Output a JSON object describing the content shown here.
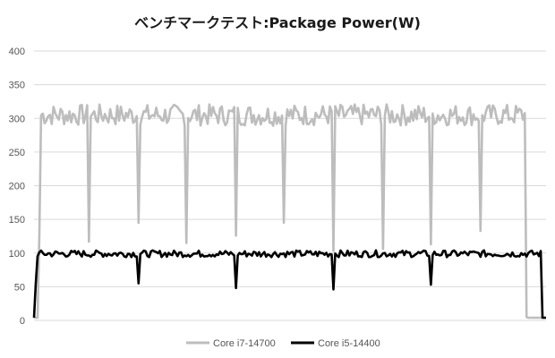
{
  "chart_data": {
    "type": "line",
    "title": "ベンチマークテスト:Package Power(W)",
    "xlabel": "",
    "ylabel": "",
    "ylim": [
      0,
      400
    ],
    "yticks": [
      "0",
      "50",
      "100",
      "150",
      "200",
      "250",
      "300",
      "350",
      "400"
    ],
    "grid": true,
    "legend": "bottom",
    "sample_count": 290,
    "series": [
      {
        "name": "Core i7-14700",
        "color": "#bdbdbd",
        "segments": [
          {
            "from": 0,
            "to": 2,
            "value": 4
          },
          {
            "from": 3,
            "to": 3,
            "value": 125
          },
          {
            "from": 4,
            "to": 277,
            "value": 305,
            "jitter": 16,
            "dips": [
              {
                "at": 31,
                "value": 117
              },
              {
                "at": 59,
                "value": 145
              },
              {
                "at": 86,
                "value": 115
              },
              {
                "at": 114,
                "value": 126
              },
              {
                "at": 141,
                "value": 145
              },
              {
                "at": 169,
                "value": 103
              },
              {
                "at": 197,
                "value": 106
              },
              {
                "at": 224,
                "value": 113
              },
              {
                "at": 252,
                "value": 133
              }
            ]
          },
          {
            "from": 278,
            "to": 278,
            "value": 5
          },
          {
            "from": 279,
            "to": 289,
            "value": 4
          }
        ]
      },
      {
        "name": "Core i5-14400",
        "color": "#000000",
        "segments": [
          {
            "from": 0,
            "to": 0,
            "value": 4
          },
          {
            "from": 1,
            "to": 1,
            "value": 55
          },
          {
            "from": 2,
            "to": 286,
            "value": 99,
            "jitter": 5,
            "dips": [
              {
                "at": 59,
                "value": 55
              },
              {
                "at": 114,
                "value": 48
              },
              {
                "at": 169,
                "value": 46
              },
              {
                "at": 224,
                "value": 53
              }
            ]
          },
          {
            "from": 287,
            "to": 289,
            "value": 4
          }
        ]
      }
    ]
  }
}
